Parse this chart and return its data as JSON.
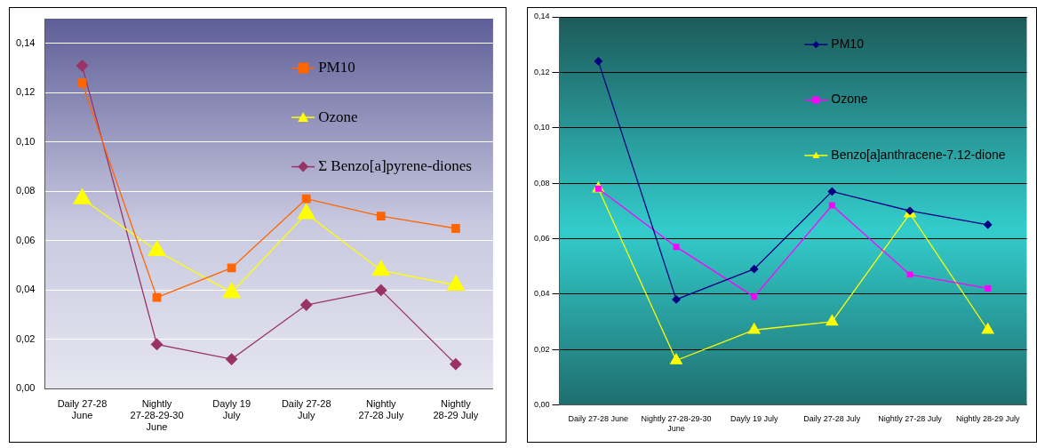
{
  "chart_data": [
    {
      "type": "line",
      "categories": [
        "Daily 27-28 June",
        "Nightly 27-28-29-30 June",
        "Dayly 19 July",
        "Daily 27-28 July",
        "Nightly 27-28 July",
        "Nightly 28-29 July"
      ],
      "series": [
        {
          "name": "PM10",
          "color": "#ff6600",
          "marker": "square",
          "values": [
            0.124,
            0.037,
            0.049,
            0.077,
            0.07,
            0.065
          ]
        },
        {
          "name": "Ozone",
          "color": "#ffff00",
          "marker": "triangle",
          "values": [
            0.077,
            0.056,
            0.039,
            0.071,
            0.048,
            0.042
          ]
        },
        {
          "name": "Σ Benzo[a]pyrene-diones",
          "color": "#993366",
          "marker": "diamond",
          "values": [
            0.131,
            0.018,
            0.012,
            0.034,
            0.04,
            0.01
          ]
        }
      ],
      "ylim": [
        0,
        0.15
      ],
      "yticks": [
        {
          "value": 0,
          "label": "0,00"
        },
        {
          "value": 0.02,
          "label": "0,02"
        },
        {
          "value": 0.04,
          "label": "0,04"
        },
        {
          "value": 0.06,
          "label": "0,06"
        },
        {
          "value": 0.08,
          "label": "0,08"
        },
        {
          "value": 0.1,
          "label": "0,10"
        },
        {
          "value": 0.12,
          "label": "0,12"
        },
        {
          "value": 0.14,
          "label": "0,14"
        }
      ],
      "grid": "y",
      "legend": "top right"
    },
    {
      "type": "line",
      "categories": [
        "Daily 27-28 June",
        "Nightly 27-28-29-30 June",
        "Dayly 19 July",
        "Daily 27-28 July",
        "Nightly 27-28 July",
        "Nightly 28-29 July"
      ],
      "series": [
        {
          "name": "PM10",
          "color": "#000080",
          "marker": "diamond",
          "values": [
            0.124,
            0.038,
            0.049,
            0.077,
            0.07,
            0.065
          ]
        },
        {
          "name": "Ozone",
          "color": "#ff00ff",
          "marker": "square",
          "values": [
            0.078,
            0.057,
            0.039,
            0.072,
            0.047,
            0.042
          ]
        },
        {
          "name": "Benzo[a]anthracene-7.12-dione",
          "color": "#ffff00",
          "marker": "triangle",
          "values": [
            0.078,
            0.016,
            0.027,
            0.03,
            0.069,
            0.027
          ]
        }
      ],
      "ylim": [
        0,
        0.14
      ],
      "yticks": [
        {
          "value": 0,
          "label": "0,00"
        },
        {
          "value": 0.02,
          "label": "0,02"
        },
        {
          "value": 0.04,
          "label": "0,04"
        },
        {
          "value": 0.06,
          "label": "0,06"
        },
        {
          "value": 0.08,
          "label": "0,08"
        },
        {
          "value": 0.1,
          "label": "0,10"
        },
        {
          "value": 0.12,
          "label": "0,12"
        },
        {
          "value": 0.14,
          "label": "0,14"
        }
      ],
      "grid": "y",
      "legend": "top right"
    }
  ]
}
